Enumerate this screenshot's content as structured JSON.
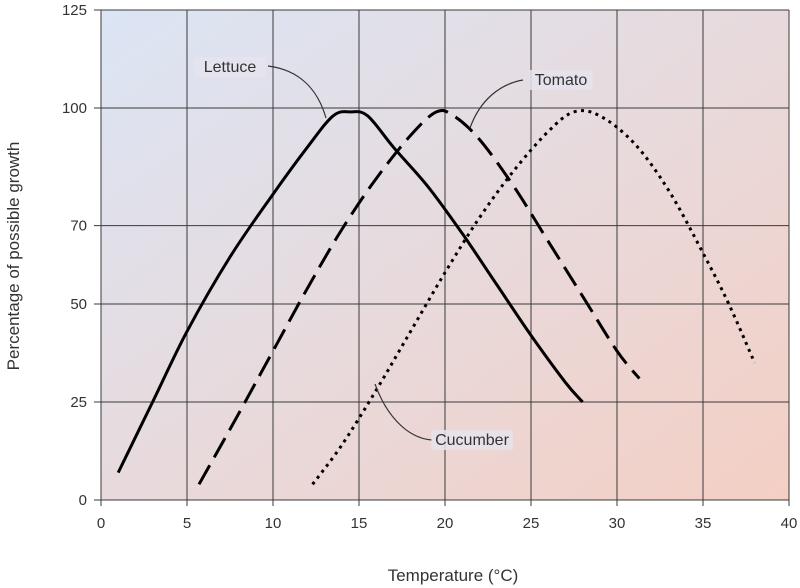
{
  "chart_data": {
    "type": "line",
    "xlabel": "Temperature (°C)",
    "ylabel": "Percentage of possible growth",
    "xlim": [
      0,
      40
    ],
    "ylim": [
      0,
      125
    ],
    "x_ticks": [
      "0",
      "5",
      "10",
      "15",
      "20",
      "25",
      "30",
      "35",
      "40"
    ],
    "y_ticks": [
      "0",
      "25",
      "50",
      "70",
      "100",
      "125"
    ],
    "y_tick_values": [
      0,
      25,
      50,
      70,
      100,
      125
    ],
    "grid": true,
    "legend": "none (series labelled directly with leader lines)",
    "colors": {
      "background_top_left": "#dbe5f5",
      "background_bottom_right": "#f4cfc4",
      "lines": "#000000"
    },
    "series": [
      {
        "name": "Lettuce",
        "style": "solid",
        "points": [
          [
            1,
            7
          ],
          [
            3,
            25
          ],
          [
            5,
            43
          ],
          [
            7.5,
            62
          ],
          [
            10,
            78
          ],
          [
            12,
            90
          ],
          [
            13.5,
            98
          ],
          [
            14.5,
            99
          ],
          [
            15.5,
            98
          ],
          [
            17,
            90
          ],
          [
            19,
            80
          ],
          [
            21,
            68
          ],
          [
            23,
            55
          ],
          [
            25,
            42
          ],
          [
            27,
            30
          ],
          [
            28,
            25
          ]
        ]
      },
      {
        "name": "Tomato",
        "style": "dashed",
        "points": [
          [
            5.7,
            4
          ],
          [
            8,
            22
          ],
          [
            10,
            38
          ],
          [
            12,
            54
          ],
          [
            14,
            69
          ],
          [
            16,
            82
          ],
          [
            18,
            93
          ],
          [
            19.5,
            99
          ],
          [
            20.5,
            98
          ],
          [
            22,
            92
          ],
          [
            24,
            80
          ],
          [
            26,
            66
          ],
          [
            28,
            52
          ],
          [
            30,
            38
          ],
          [
            31.3,
            31
          ]
        ]
      },
      {
        "name": "Cucumber",
        "style": "dotted",
        "points": [
          [
            12.3,
            4
          ],
          [
            14,
            14
          ],
          [
            16,
            28
          ],
          [
            18,
            43
          ],
          [
            20,
            58
          ],
          [
            22,
            72
          ],
          [
            24,
            84
          ],
          [
            26,
            94
          ],
          [
            27.5,
            99
          ],
          [
            29,
            98
          ],
          [
            31,
            91
          ],
          [
            33,
            79
          ],
          [
            35,
            63
          ],
          [
            36.5,
            50
          ],
          [
            38,
            35
          ]
        ]
      }
    ]
  }
}
